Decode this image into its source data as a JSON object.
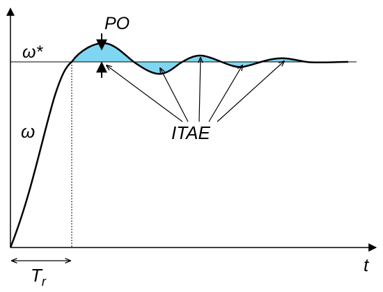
{
  "labels": {
    "setpoint": "ω*",
    "speed": "ω",
    "overshoot": "PO",
    "error_metric": "ITAE",
    "time_axis": "t",
    "rise_time_main": "T",
    "rise_time_sub": "r"
  },
  "colors": {
    "curve": "#000000",
    "error_fill": "#7fd6f2",
    "axis": "#000000"
  }
}
